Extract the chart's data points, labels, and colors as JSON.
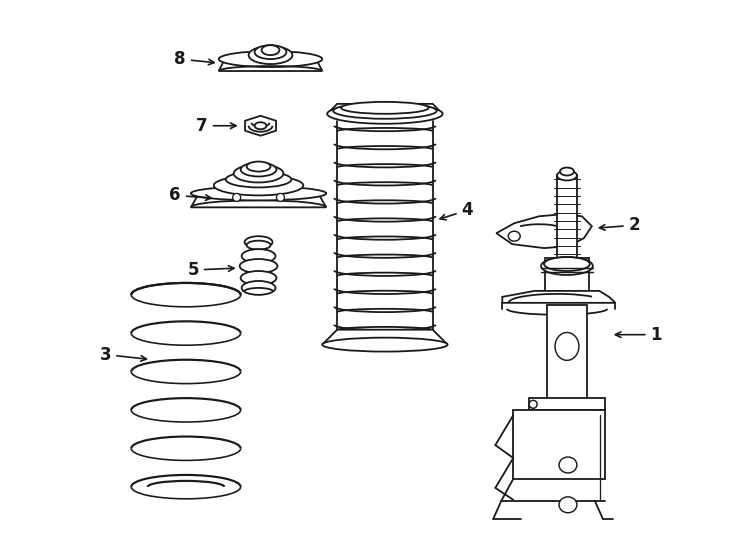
{
  "bg_color": "#ffffff",
  "line_color": "#1a1a1a",
  "line_width": 1.3,
  "fig_width": 7.34,
  "fig_height": 5.4,
  "dpi": 100
}
